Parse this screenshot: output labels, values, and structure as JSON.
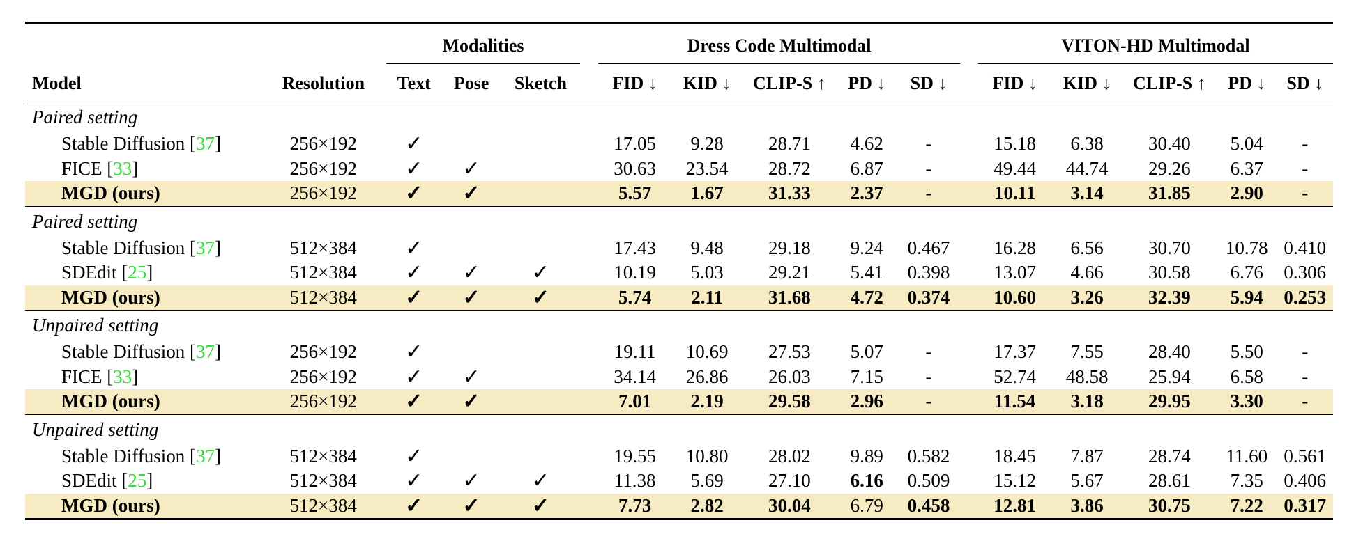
{
  "header": {
    "groups": {
      "modalities": "Modalities",
      "dresscode": "Dress Code Multimodal",
      "vitonhd": "VITON-HD Multimodal"
    },
    "columns": {
      "model": "Model",
      "resolution": "Resolution",
      "text": "Text",
      "pose": "Pose",
      "sketch": "Sketch",
      "dc_fid": "FID ↓",
      "dc_kid": "KID ↓",
      "dc_clips": "CLIP-S ↑",
      "dc_pd": "PD ↓",
      "dc_sd": "SD ↓",
      "vh_fid": "FID ↓",
      "vh_kid": "KID ↓",
      "vh_clips": "CLIP-S ↑",
      "vh_pd": "PD ↓",
      "vh_sd": "SD ↓"
    }
  },
  "check_mark": "✓",
  "sections": [
    {
      "label": "Paired setting",
      "rows": [
        {
          "name": "Stable Diffusion [",
          "cite": "37",
          "close": "]",
          "resolution": "256×192",
          "text": "✓",
          "pose": "",
          "sketch": "",
          "dc": [
            "17.05",
            "9.28",
            "28.71",
            "4.62",
            "-"
          ],
          "vh": [
            "15.18",
            "6.38",
            "30.40",
            "5.04",
            "-"
          ]
        },
        {
          "name": "FICE [",
          "cite": "33",
          "close": "]",
          "resolution": "256×192",
          "text": "✓",
          "pose": "✓",
          "sketch": "",
          "dc": [
            "30.63",
            "23.54",
            "28.72",
            "6.87",
            "-"
          ],
          "vh": [
            "49.44",
            "44.74",
            "29.26",
            "6.37",
            "-"
          ]
        },
        {
          "name": "MGD (ours)",
          "resolution": "256×192",
          "text": "✓",
          "pose": "✓",
          "sketch": "",
          "dc": [
            "5.57",
            "1.67",
            "31.33",
            "2.37",
            "-"
          ],
          "vh": [
            "10.11",
            "3.14",
            "31.85",
            "2.90",
            "-"
          ]
        }
      ]
    },
    {
      "label": "Paired setting",
      "rows": [
        {
          "name": "Stable Diffusion [",
          "cite": "37",
          "close": "]",
          "resolution": "512×384",
          "text": "✓",
          "pose": "",
          "sketch": "",
          "dc": [
            "17.43",
            "9.48",
            "29.18",
            "9.24",
            "0.467"
          ],
          "vh": [
            "16.28",
            "6.56",
            "30.70",
            "10.78",
            "0.410"
          ]
        },
        {
          "name": "SDEdit [",
          "cite": "25",
          "close": "]",
          "resolution": "512×384",
          "text": "✓",
          "pose": "✓",
          "sketch": "✓",
          "dc": [
            "10.19",
            "5.03",
            "29.21",
            "5.41",
            "0.398"
          ],
          "vh": [
            "13.07",
            "4.66",
            "30.58",
            "6.76",
            "0.306"
          ]
        },
        {
          "name": "MGD (ours)",
          "resolution": "512×384",
          "text": "✓",
          "pose": "✓",
          "sketch": "✓",
          "dc": [
            "5.74",
            "2.11",
            "31.68",
            "4.72",
            "0.374"
          ],
          "vh": [
            "10.60",
            "3.26",
            "32.39",
            "5.94",
            "0.253"
          ]
        }
      ]
    },
    {
      "label": "Unpaired setting",
      "rows": [
        {
          "name": "Stable Diffusion [",
          "cite": "37",
          "close": "]",
          "resolution": "256×192",
          "text": "✓",
          "pose": "",
          "sketch": "",
          "dc": [
            "19.11",
            "10.69",
            "27.53",
            "5.07",
            "-"
          ],
          "vh": [
            "17.37",
            "7.55",
            "28.40",
            "5.50",
            "-"
          ]
        },
        {
          "name": "FICE [",
          "cite": "33",
          "close": "]",
          "resolution": "256×192",
          "text": "✓",
          "pose": "✓",
          "sketch": "",
          "dc": [
            "34.14",
            "26.86",
            "26.03",
            "7.15",
            "-"
          ],
          "vh": [
            "52.74",
            "48.58",
            "25.94",
            "6.58",
            "-"
          ]
        },
        {
          "name": "MGD (ours)",
          "resolution": "256×192",
          "text": "✓",
          "pose": "✓",
          "sketch": "",
          "dc": [
            "7.01",
            "2.19",
            "29.58",
            "2.96",
            "-"
          ],
          "vh": [
            "11.54",
            "3.18",
            "29.95",
            "3.30",
            "-"
          ]
        }
      ]
    },
    {
      "label": "Unpaired setting",
      "rows": [
        {
          "name": "Stable Diffusion [",
          "cite": "37",
          "close": "]",
          "resolution": "512×384",
          "text": "✓",
          "pose": "",
          "sketch": "",
          "dc": [
            "19.55",
            "10.80",
            "28.02",
            "9.89",
            "0.582"
          ],
          "vh": [
            "18.45",
            "7.87",
            "28.74",
            "11.60",
            "0.561"
          ]
        },
        {
          "name": "SDEdit [",
          "cite": "25",
          "close": "]",
          "resolution": "512×384",
          "text": "✓",
          "pose": "✓",
          "sketch": "✓",
          "dc": [
            "11.38",
            "5.69",
            "27.10",
            "6.16",
            "0.509"
          ],
          "vh": [
            "15.12",
            "5.67",
            "28.61",
            "7.35",
            "0.406"
          ]
        },
        {
          "name": "MGD (ours)",
          "resolution": "512×384",
          "text": "✓",
          "pose": "✓",
          "sketch": "✓",
          "dc": [
            "7.73",
            "2.82",
            "30.04",
            "6.79",
            "0.458"
          ],
          "vh": [
            "12.81",
            "3.86",
            "30.75",
            "7.22",
            "0.317"
          ]
        }
      ]
    }
  ]
}
